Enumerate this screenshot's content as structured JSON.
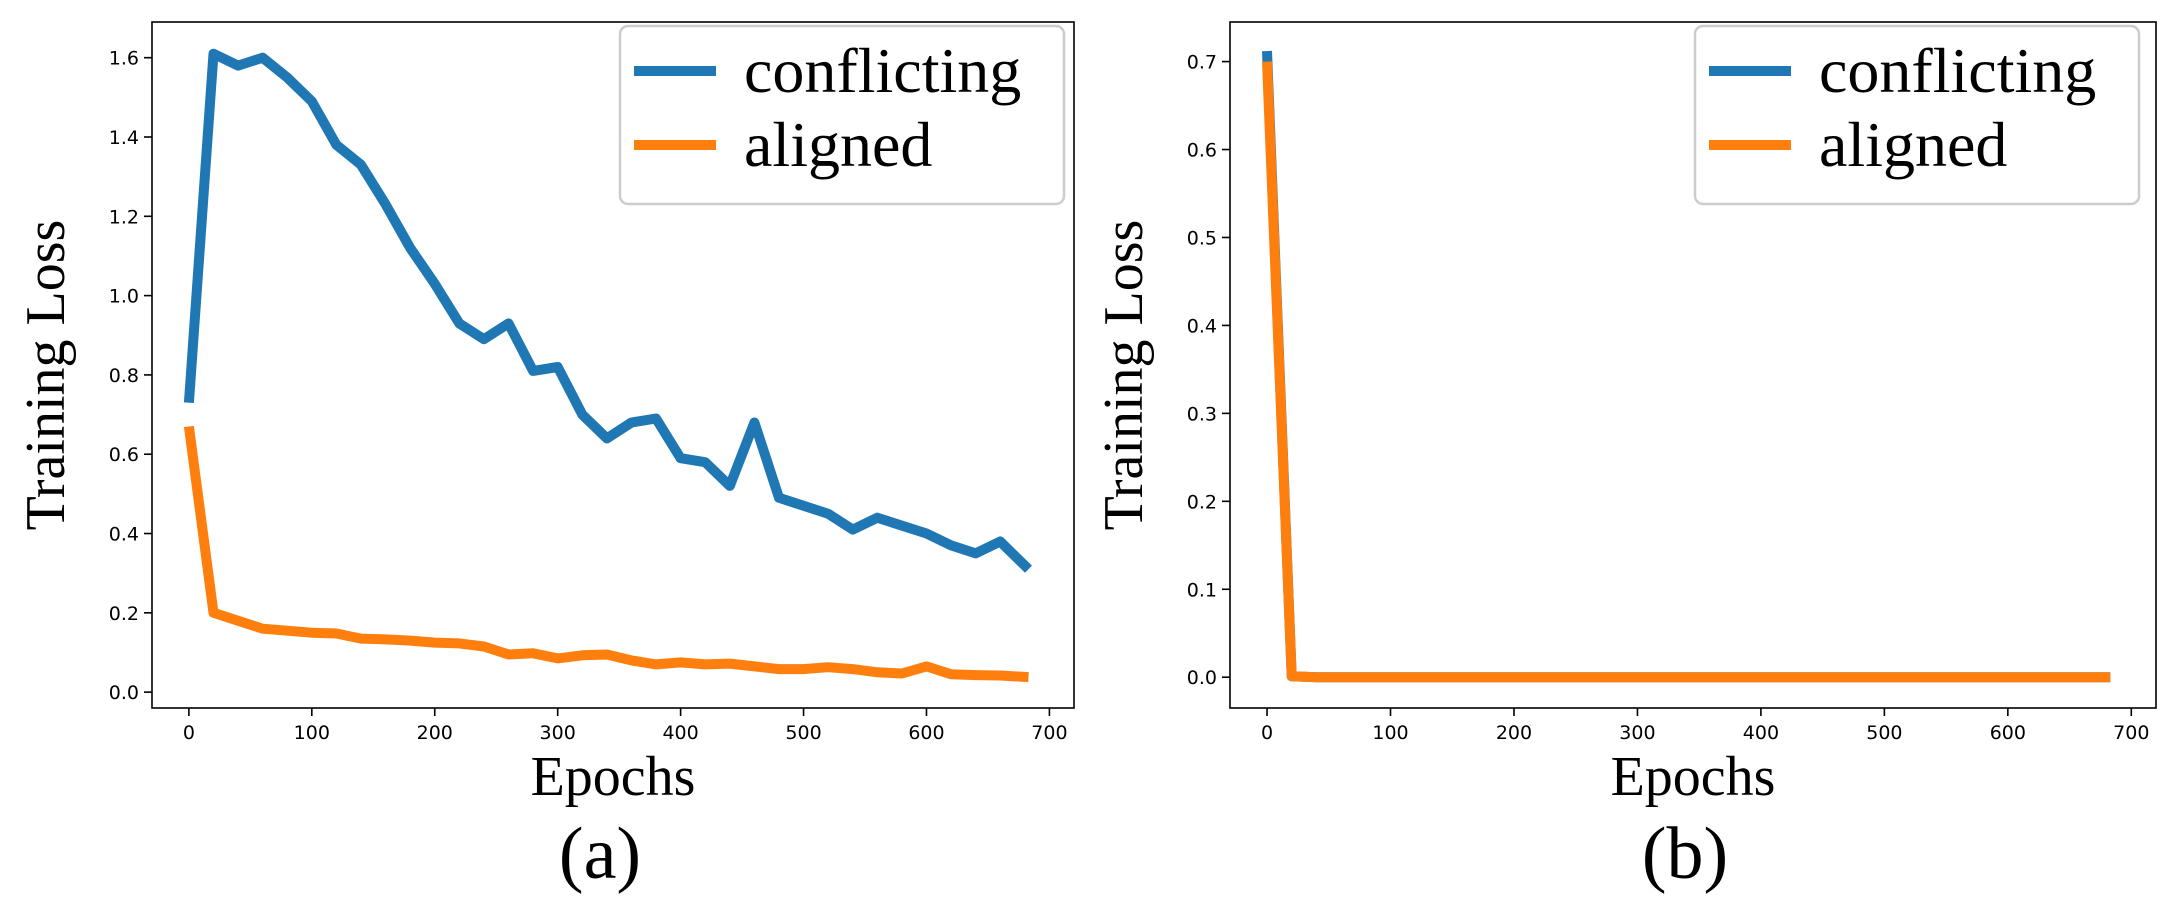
{
  "figure": {
    "captions": [
      "(a)",
      "(b)"
    ]
  },
  "chart_data": [
    {
      "type": "line",
      "panel": "(a)",
      "xlabel": "Epochs",
      "ylabel": "Training Loss",
      "xlim": [
        -30,
        720
      ],
      "ylim": [
        -0.04,
        1.69
      ],
      "xticks": [
        0,
        100,
        200,
        300,
        400,
        500,
        600,
        700
      ],
      "yticks": [
        0.0,
        0.2,
        0.4,
        0.6,
        0.8,
        1.0,
        1.2,
        1.4,
        1.6
      ],
      "ytick_decimals": 1,
      "legend": "top-right",
      "series": [
        {
          "name": "conflicting",
          "color": "#1f77b4",
          "x": [
            0,
            20,
            40,
            60,
            80,
            100,
            120,
            140,
            160,
            180,
            200,
            220,
            240,
            260,
            280,
            300,
            320,
            340,
            360,
            380,
            400,
            420,
            440,
            460,
            480,
            500,
            520,
            540,
            560,
            580,
            600,
            620,
            640,
            660,
            683
          ],
          "y": [
            0.73,
            1.61,
            1.58,
            1.6,
            1.55,
            1.49,
            1.38,
            1.33,
            1.23,
            1.12,
            1.03,
            0.93,
            0.89,
            0.93,
            0.81,
            0.82,
            0.7,
            0.64,
            0.68,
            0.69,
            0.59,
            0.58,
            0.52,
            0.68,
            0.49,
            0.47,
            0.45,
            0.41,
            0.44,
            0.42,
            0.4,
            0.37,
            0.35,
            0.38,
            0.31
          ]
        },
        {
          "name": "aligned",
          "color": "#ff7f0e",
          "x": [
            0,
            20,
            40,
            60,
            80,
            100,
            120,
            140,
            160,
            180,
            200,
            220,
            240,
            260,
            280,
            300,
            320,
            340,
            360,
            380,
            400,
            420,
            440,
            460,
            480,
            500,
            520,
            540,
            560,
            580,
            600,
            620,
            640,
            660,
            683
          ],
          "y": [
            0.67,
            0.2,
            0.18,
            0.16,
            0.155,
            0.15,
            0.148,
            0.135,
            0.133,
            0.13,
            0.125,
            0.123,
            0.115,
            0.095,
            0.098,
            0.085,
            0.093,
            0.095,
            0.08,
            0.07,
            0.075,
            0.07,
            0.072,
            0.065,
            0.058,
            0.058,
            0.063,
            0.058,
            0.05,
            0.047,
            0.065,
            0.045,
            0.043,
            0.042,
            0.038
          ]
        }
      ]
    },
    {
      "type": "line",
      "panel": "(b)",
      "xlabel": "Epochs",
      "ylabel": "Training Loss",
      "xlim": [
        -30,
        720
      ],
      "ylim": [
        -0.035,
        0.745
      ],
      "xticks": [
        0,
        100,
        200,
        300,
        400,
        500,
        600,
        700
      ],
      "yticks": [
        0.0,
        0.1,
        0.2,
        0.3,
        0.4,
        0.5,
        0.6,
        0.7
      ],
      "ytick_decimals": 1,
      "legend": "top-right",
      "series": [
        {
          "name": "conflicting",
          "color": "#1f77b4",
          "x": [
            0,
            20,
            40,
            60,
            100,
            200,
            300,
            400,
            500,
            600,
            683
          ],
          "y": [
            0.712,
            0.001,
            0.0,
            0.0,
            0.0,
            0.0,
            0.0,
            0.0,
            0.0,
            0.0,
            0.0
          ]
        },
        {
          "name": "aligned",
          "color": "#ff7f0e",
          "x": [
            0,
            20,
            40,
            60,
            100,
            200,
            300,
            400,
            500,
            600,
            683
          ],
          "y": [
            0.7,
            0.001,
            0.0,
            0.0,
            0.0,
            0.0,
            0.0,
            0.0,
            0.0,
            0.0,
            0.0
          ]
        }
      ]
    }
  ]
}
